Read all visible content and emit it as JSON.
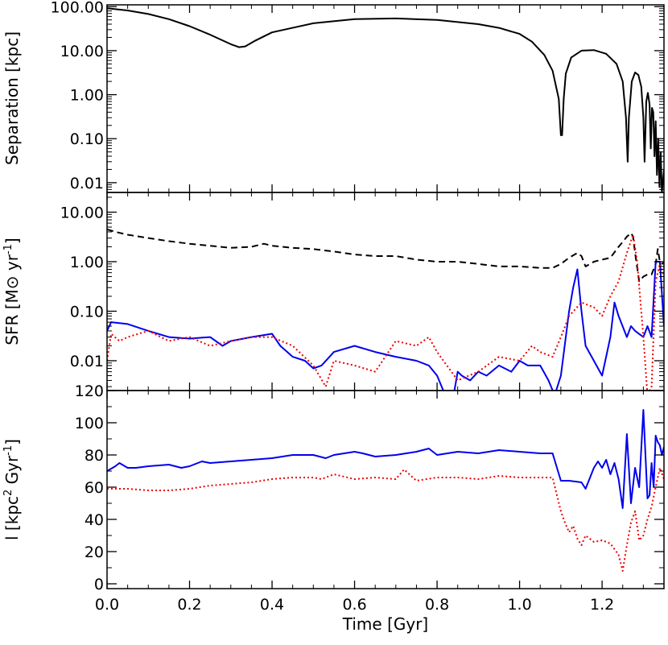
{
  "chart_data": [
    {
      "type": "line",
      "ylabel": "Separation [kpc]",
      "yscale": "log",
      "ylim": [
        0.006,
        110
      ],
      "yticks": [
        0.01,
        0.1,
        1,
        10,
        100
      ],
      "ytick_labels": [
        "0.01",
        "0.10",
        "1.00",
        "10.00",
        "100.00"
      ],
      "series": [
        {
          "color": "#000000",
          "style": "solid",
          "x": [
            0.0,
            0.05,
            0.1,
            0.15,
            0.2,
            0.25,
            0.3,
            0.32,
            0.335,
            0.36,
            0.4,
            0.5,
            0.6,
            0.7,
            0.8,
            0.9,
            0.95,
            1.0,
            1.03,
            1.06,
            1.08,
            1.095,
            1.1,
            1.103,
            1.107,
            1.112,
            1.125,
            1.15,
            1.18,
            1.21,
            1.235,
            1.25,
            1.258,
            1.262,
            1.265,
            1.272,
            1.28,
            1.288,
            1.295,
            1.3,
            1.303,
            1.307,
            1.311,
            1.315,
            1.318,
            1.321,
            1.324,
            1.327,
            1.33,
            1.333,
            1.336,
            1.339,
            1.342,
            1.345,
            1.35
          ],
          "values": [
            92,
            82,
            68,
            52,
            36,
            23,
            14,
            12,
            12.5,
            17,
            26,
            42,
            52,
            54,
            50,
            40,
            33,
            24,
            16,
            8,
            3.5,
            0.8,
            0.12,
            0.12,
            0.8,
            3,
            7,
            10,
            10.3,
            8.5,
            5,
            2,
            0.3,
            0.03,
            0.3,
            2,
            3.2,
            2.8,
            1.5,
            0.3,
            0.03,
            0.7,
            1.1,
            0.6,
            0.06,
            0.5,
            0.4,
            0.04,
            0.25,
            0.015,
            0.1,
            0.008,
            0.05,
            0.006,
            0.02
          ]
        }
      ]
    },
    {
      "type": "line",
      "ylabel": "SFR [M⊙ yr",
      "ylabel_sup": "-1",
      "ylabel_close": "]",
      "yscale": "log",
      "ylim": [
        0.0025,
        25
      ],
      "yticks": [
        0.01,
        0.1,
        1,
        10
      ],
      "ytick_labels": [
        "0.01",
        "0.10",
        "1.00",
        "10.00"
      ],
      "series": [
        {
          "color": "#000000",
          "style": "dashed",
          "x": [
            0.0,
            0.02,
            0.05,
            0.1,
            0.15,
            0.2,
            0.25,
            0.3,
            0.35,
            0.38,
            0.4,
            0.45,
            0.5,
            0.55,
            0.6,
            0.65,
            0.7,
            0.75,
            0.8,
            0.85,
            0.9,
            0.95,
            1.0,
            1.05,
            1.08,
            1.1,
            1.12,
            1.14,
            1.15,
            1.16,
            1.18,
            1.2,
            1.22,
            1.24,
            1.25,
            1.26,
            1.27,
            1.275,
            1.28,
            1.29,
            1.3,
            1.31,
            1.32,
            1.33,
            1.335,
            1.34,
            1.35
          ],
          "values": [
            4.5,
            4.0,
            3.5,
            3.0,
            2.6,
            2.3,
            2.1,
            1.9,
            2.0,
            2.3,
            2.1,
            1.9,
            1.8,
            1.6,
            1.4,
            1.3,
            1.3,
            1.1,
            1.0,
            1.0,
            0.9,
            0.8,
            0.8,
            0.75,
            0.75,
            0.9,
            1.2,
            1.5,
            1.3,
            0.8,
            1.0,
            1.1,
            1.2,
            2.0,
            2.5,
            3.2,
            3.8,
            3.2,
            1.5,
            0.4,
            0.5,
            0.55,
            0.55,
            0.9,
            1.8,
            1.0,
            0.9
          ]
        },
        {
          "color": "#0000ee",
          "style": "solid",
          "x": [
            0.0,
            0.01,
            0.05,
            0.1,
            0.15,
            0.2,
            0.25,
            0.28,
            0.3,
            0.35,
            0.4,
            0.42,
            0.45,
            0.48,
            0.5,
            0.52,
            0.55,
            0.6,
            0.65,
            0.7,
            0.75,
            0.78,
            0.8,
            0.82,
            0.84,
            0.85,
            0.86,
            0.88,
            0.9,
            0.92,
            0.95,
            0.98,
            1.0,
            1.02,
            1.05,
            1.07,
            1.085,
            1.1,
            1.12,
            1.13,
            1.14,
            1.15,
            1.16,
            1.18,
            1.2,
            1.22,
            1.23,
            1.24,
            1.26,
            1.27,
            1.28,
            1.3,
            1.31,
            1.32,
            1.33,
            1.34,
            1.35
          ],
          "values": [
            0.04,
            0.06,
            0.055,
            0.04,
            0.03,
            0.028,
            0.03,
            0.02,
            0.025,
            0.03,
            0.035,
            0.02,
            0.012,
            0.01,
            0.007,
            0.008,
            0.015,
            0.02,
            0.015,
            0.012,
            0.01,
            0.008,
            0.005,
            0.002,
            0.002,
            0.006,
            0.005,
            0.004,
            0.006,
            0.005,
            0.008,
            0.006,
            0.01,
            0.008,
            0.008,
            0.004,
            0.002,
            0.005,
            0.1,
            0.3,
            0.7,
            0.1,
            0.02,
            0.01,
            0.005,
            0.03,
            0.15,
            0.08,
            0.03,
            0.05,
            0.04,
            0.03,
            0.05,
            0.03,
            1.0,
            1.0,
            0.05
          ]
        },
        {
          "color": "#ee0000",
          "style": "dotted",
          "x": [
            0.0,
            0.01,
            0.03,
            0.05,
            0.1,
            0.15,
            0.2,
            0.25,
            0.3,
            0.35,
            0.4,
            0.45,
            0.5,
            0.53,
            0.55,
            0.6,
            0.65,
            0.7,
            0.75,
            0.78,
            0.8,
            0.85,
            0.9,
            0.95,
            1.0,
            1.03,
            1.05,
            1.08,
            1.1,
            1.12,
            1.15,
            1.18,
            1.2,
            1.22,
            1.24,
            1.26,
            1.275,
            1.285,
            1.3,
            1.31,
            1.32,
            1.33,
            1.34,
            1.35
          ],
          "values": [
            0.01,
            0.035,
            0.025,
            0.03,
            0.04,
            0.025,
            0.03,
            0.02,
            0.025,
            0.03,
            0.03,
            0.02,
            0.008,
            0.003,
            0.01,
            0.008,
            0.006,
            0.025,
            0.02,
            0.03,
            0.015,
            0.004,
            0.006,
            0.012,
            0.01,
            0.02,
            0.015,
            0.012,
            0.03,
            0.08,
            0.15,
            0.12,
            0.08,
            0.2,
            0.4,
            1.5,
            3.5,
            1.0,
            0.03,
            0.002,
            0.003,
            0.4,
            0.9,
            0.5
          ]
        }
      ]
    },
    {
      "type": "line",
      "ylabel": "l [kpc",
      "ylabel_sup1": "2",
      "ylabel_mid": " Gyr",
      "ylabel_sup2": "-1",
      "ylabel_close": "]",
      "xlabel": "Time [Gyr]",
      "xlim": [
        0.0,
        1.35
      ],
      "xticks": [
        0.0,
        0.2,
        0.4,
        0.6,
        0.8,
        1.0,
        1.2
      ],
      "xtick_labels": [
        "0.0",
        "0.2",
        "0.4",
        "0.6",
        "0.8",
        "1.0",
        "1.2"
      ],
      "ylim": [
        -3,
        120
      ],
      "yticks": [
        0,
        20,
        40,
        60,
        80,
        100,
        120
      ],
      "ytick_labels": [
        "0",
        "20",
        "40",
        "60",
        "80",
        "100",
        "120"
      ],
      "series": [
        {
          "color": "#0000ee",
          "style": "solid",
          "x": [
            0.0,
            0.02,
            0.03,
            0.05,
            0.07,
            0.1,
            0.15,
            0.18,
            0.2,
            0.23,
            0.25,
            0.3,
            0.35,
            0.4,
            0.45,
            0.5,
            0.53,
            0.55,
            0.6,
            0.62,
            0.65,
            0.7,
            0.75,
            0.78,
            0.8,
            0.85,
            0.9,
            0.95,
            1.0,
            1.05,
            1.08,
            1.1,
            1.12,
            1.15,
            1.16,
            1.18,
            1.19,
            1.2,
            1.21,
            1.22,
            1.23,
            1.24,
            1.25,
            1.26,
            1.27,
            1.28,
            1.29,
            1.3,
            1.31,
            1.315,
            1.32,
            1.325,
            1.33,
            1.335,
            1.34,
            1.345,
            1.35
          ],
          "values": [
            70,
            73,
            75,
            72,
            72,
            73,
            74,
            72,
            73,
            76,
            75,
            76,
            77,
            78,
            80,
            80,
            78,
            80,
            82,
            81,
            79,
            80,
            82,
            84,
            80,
            82,
            81,
            83,
            82,
            81,
            81,
            64,
            64,
            63,
            59,
            72,
            76,
            72,
            77,
            68,
            75,
            65,
            47,
            93,
            50,
            72,
            60,
            108,
            53,
            55,
            75,
            60,
            92,
            88,
            86,
            80,
            85
          ]
        },
        {
          "color": "#ee0000",
          "style": "dotted",
          "x": [
            0.0,
            0.05,
            0.1,
            0.15,
            0.2,
            0.25,
            0.3,
            0.35,
            0.4,
            0.45,
            0.5,
            0.52,
            0.55,
            0.6,
            0.65,
            0.7,
            0.72,
            0.75,
            0.8,
            0.85,
            0.9,
            0.95,
            1.0,
            1.05,
            1.08,
            1.1,
            1.11,
            1.12,
            1.13,
            1.14,
            1.15,
            1.16,
            1.18,
            1.2,
            1.22,
            1.24,
            1.25,
            1.26,
            1.27,
            1.28,
            1.29,
            1.3,
            1.31,
            1.32,
            1.33,
            1.34,
            1.35
          ],
          "values": [
            59,
            59,
            58,
            58,
            59,
            61,
            62,
            63,
            65,
            66,
            66,
            65,
            68,
            65,
            66,
            65,
            71,
            64,
            66,
            66,
            65,
            67,
            66,
            66,
            66,
            45,
            38,
            32,
            36,
            28,
            24,
            30,
            26,
            27,
            25,
            18,
            8,
            24,
            38,
            45,
            27,
            30,
            40,
            48,
            60,
            72,
            65
          ]
        }
      ]
    }
  ]
}
